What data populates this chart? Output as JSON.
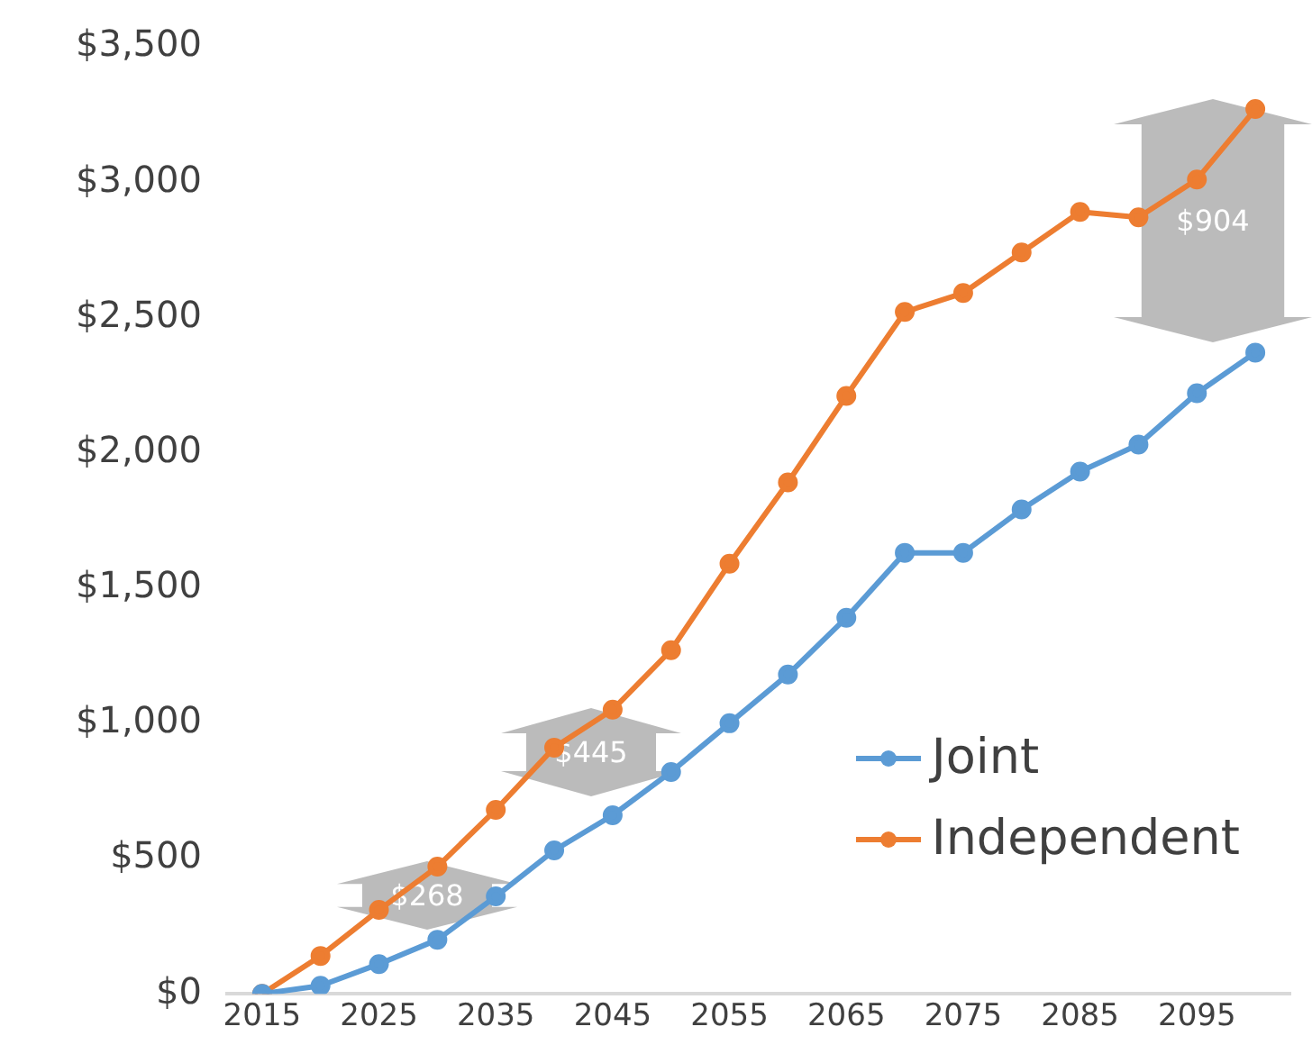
{
  "chart_data": {
    "type": "line",
    "x": [
      2015,
      2020,
      2025,
      2030,
      2035,
      2040,
      2045,
      2050,
      2055,
      2060,
      2065,
      2070,
      2075,
      2080,
      2085,
      2090,
      2095,
      2100
    ],
    "series": [
      {
        "name": "Joint",
        "color": "#5b9bd5",
        "values": [
          0,
          30,
          110,
          200,
          360,
          530,
          660,
          820,
          1000,
          1180,
          1390,
          1630,
          1630,
          1790,
          1930,
          2030,
          2220,
          2370
        ]
      },
      {
        "name": "Independent",
        "color": "#ed7d31",
        "values": [
          0,
          140,
          310,
          470,
          680,
          910,
          1050,
          1270,
          1590,
          1890,
          2210,
          2520,
          2590,
          2740,
          2890,
          2870,
          3010,
          3270
        ]
      }
    ],
    "xlim": [
      2012,
      2103
    ],
    "xticks": [
      2015,
      2025,
      2035,
      2045,
      2055,
      2065,
      2075,
      2085,
      2095
    ],
    "ylim": [
      0,
      3500
    ],
    "yticks": [
      {
        "value": 0,
        "label": "$0"
      },
      {
        "value": 500,
        "label": "$500"
      },
      {
        "value": 1000,
        "label": "$1,000"
      },
      {
        "value": 1500,
        "label": "$1,500"
      },
      {
        "value": 2000,
        "label": "$2,000"
      },
      {
        "value": 2500,
        "label": "$2,500"
      },
      {
        "value": 3000,
        "label": "$3,000"
      },
      {
        "value": 3500,
        "label": "$3,500"
      }
    ],
    "annotations": [
      "$268",
      "$445",
      "$904"
    ],
    "grid": false,
    "legend": "bottom right",
    "marker": "circle",
    "line_style": "solid"
  }
}
